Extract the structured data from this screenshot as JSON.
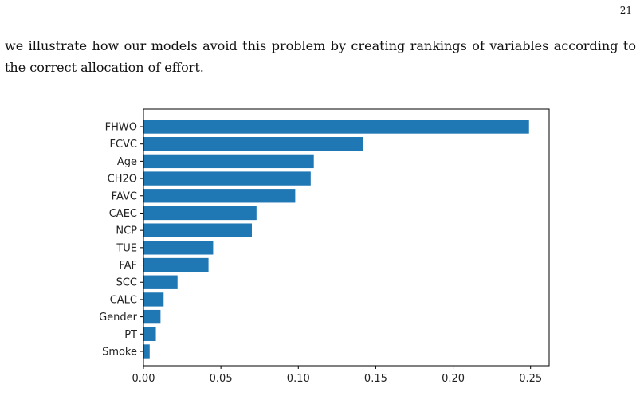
{
  "page": {
    "number": "21",
    "paragraph": "we illustrate how our models avoid this problem by creating rankings of variables according to the correct allocation of effort."
  },
  "chart_data": {
    "type": "bar",
    "orientation": "horizontal",
    "title": "",
    "xlabel": "",
    "ylabel": "",
    "categories": [
      "FHWO",
      "FCVC",
      "Age",
      "CH2O",
      "FAVC",
      "CAEC",
      "NCP",
      "TUE",
      "FAF",
      "SCC",
      "CALC",
      "Gender",
      "PT",
      "Smoke"
    ],
    "values": [
      0.249,
      0.142,
      0.11,
      0.108,
      0.098,
      0.073,
      0.07,
      0.045,
      0.042,
      0.022,
      0.013,
      0.011,
      0.008,
      0.004
    ],
    "xlim": [
      0,
      0.262
    ],
    "xticks": [
      "0.00",
      "0.05",
      "0.10",
      "0.15",
      "0.20",
      "0.25"
    ],
    "xtick_values": [
      0,
      0.05,
      0.1,
      0.15,
      0.2,
      0.25
    ],
    "bar_color": "#1f77b4",
    "grid": false,
    "legend": "none"
  }
}
